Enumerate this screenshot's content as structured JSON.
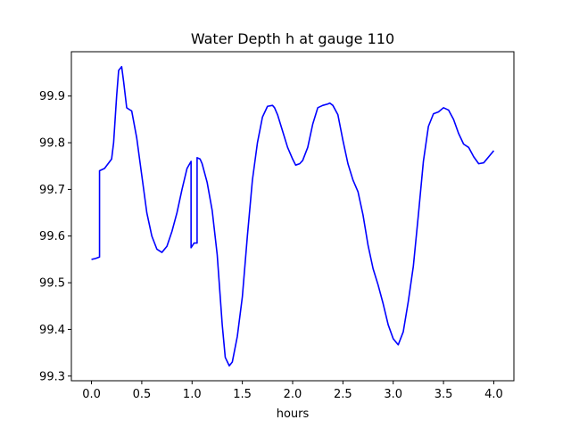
{
  "chart_data": {
    "type": "line",
    "title": "Water Depth h at gauge 110",
    "xlabel": "hours",
    "ylabel": "",
    "xlim": [
      -0.2,
      4.2
    ],
    "ylim": [
      99.29,
      99.995
    ],
    "xticks": [
      0.0,
      0.5,
      1.0,
      1.5,
      2.0,
      2.5,
      3.0,
      3.5,
      4.0
    ],
    "xtick_labels": [
      "0.0",
      "0.5",
      "1.0",
      "1.5",
      "2.0",
      "2.5",
      "3.0",
      "3.5",
      "4.0"
    ],
    "yticks": [
      99.3,
      99.4,
      99.5,
      99.6,
      99.7,
      99.8,
      99.9
    ],
    "ytick_labels": [
      "99.3",
      "99.4",
      "99.5",
      "99.6",
      "99.7",
      "99.8",
      "99.9"
    ],
    "grid": false,
    "legend": "none",
    "series": [
      {
        "color": "#0000ff",
        "x": [
          0.0,
          0.04,
          0.08,
          0.08,
          0.13,
          0.2,
          0.22,
          0.25,
          0.27,
          0.3,
          0.32,
          0.35,
          0.37,
          0.4,
          0.45,
          0.5,
          0.55,
          0.6,
          0.65,
          0.7,
          0.75,
          0.8,
          0.85,
          0.9,
          0.95,
          0.99,
          0.99,
          1.02,
          1.05,
          1.05,
          1.08,
          1.1,
          1.15,
          1.2,
          1.25,
          1.3,
          1.33,
          1.37,
          1.4,
          1.45,
          1.5,
          1.55,
          1.6,
          1.65,
          1.7,
          1.75,
          1.8,
          1.82,
          1.85,
          1.9,
          1.95,
          2.0,
          2.03,
          2.07,
          2.1,
          2.15,
          2.2,
          2.25,
          2.3,
          2.35,
          2.37,
          2.4,
          2.45,
          2.5,
          2.55,
          2.6,
          2.65,
          2.7,
          2.75,
          2.8,
          2.85,
          2.9,
          2.95,
          3.0,
          3.05,
          3.1,
          3.15,
          3.2,
          3.25,
          3.3,
          3.35,
          3.4,
          3.45,
          3.5,
          3.55,
          3.6,
          3.65,
          3.7,
          3.75,
          3.8,
          3.85,
          3.9,
          3.95,
          4.0
        ],
        "y": [
          99.55,
          99.552,
          99.555,
          99.74,
          99.745,
          99.765,
          99.8,
          99.9,
          99.955,
          99.963,
          99.93,
          99.875,
          99.872,
          99.868,
          99.81,
          99.73,
          99.65,
          99.6,
          99.572,
          99.565,
          99.578,
          99.61,
          99.65,
          99.7,
          99.745,
          99.76,
          99.575,
          99.585,
          99.585,
          99.768,
          99.765,
          99.755,
          99.715,
          99.655,
          99.56,
          99.41,
          99.34,
          99.322,
          99.33,
          99.385,
          99.47,
          99.6,
          99.72,
          99.8,
          99.855,
          99.878,
          99.88,
          99.875,
          99.86,
          99.825,
          99.79,
          99.765,
          99.752,
          99.755,
          99.762,
          99.79,
          99.84,
          99.875,
          99.88,
          99.883,
          99.885,
          99.88,
          99.86,
          99.805,
          99.755,
          99.72,
          99.695,
          99.645,
          99.58,
          99.53,
          99.495,
          99.455,
          99.41,
          99.38,
          99.367,
          99.395,
          99.46,
          99.535,
          99.645,
          99.76,
          99.835,
          99.862,
          99.866,
          99.875,
          99.87,
          99.85,
          99.82,
          99.797,
          99.79,
          99.77,
          99.755,
          99.757,
          99.77,
          99.783
        ]
      }
    ]
  }
}
